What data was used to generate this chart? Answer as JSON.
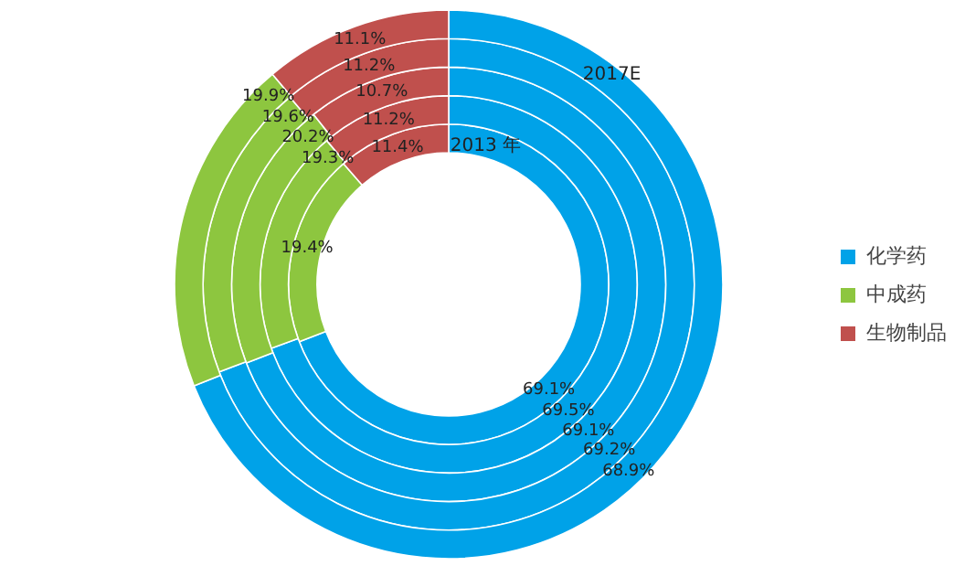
{
  "chart_data": {
    "type": "donut",
    "categories": [
      "化学药",
      "中成药",
      "生物制品"
    ],
    "colors": [
      "#00a2e8",
      "#8dc63f",
      "#c0504d"
    ],
    "series": [
      {
        "values": [
          69.1,
          19.4,
          11.4
        ],
        "value_labels": [
          "69.1%",
          "19.4%",
          "11.4%"
        ]
      },
      {
        "values": [
          69.5,
          19.3,
          11.2
        ],
        "value_labels": [
          "69.5%",
          "19.3%",
          "11.2%"
        ]
      },
      {
        "values": [
          69.1,
          20.2,
          10.7
        ],
        "value_labels": [
          "69.1%",
          "20.2%",
          "10.7%"
        ]
      },
      {
        "values": [
          69.2,
          19.6,
          11.2
        ],
        "value_labels": [
          "69.2%",
          "19.6%",
          "11.2%"
        ]
      },
      {
        "values": [
          68.9,
          19.9,
          11.1
        ],
        "value_labels": [
          "68.9%",
          "19.9%",
          "11.1%"
        ]
      }
    ],
    "annotations": [
      "2013 年",
      "2017E"
    ],
    "legend": "right"
  }
}
